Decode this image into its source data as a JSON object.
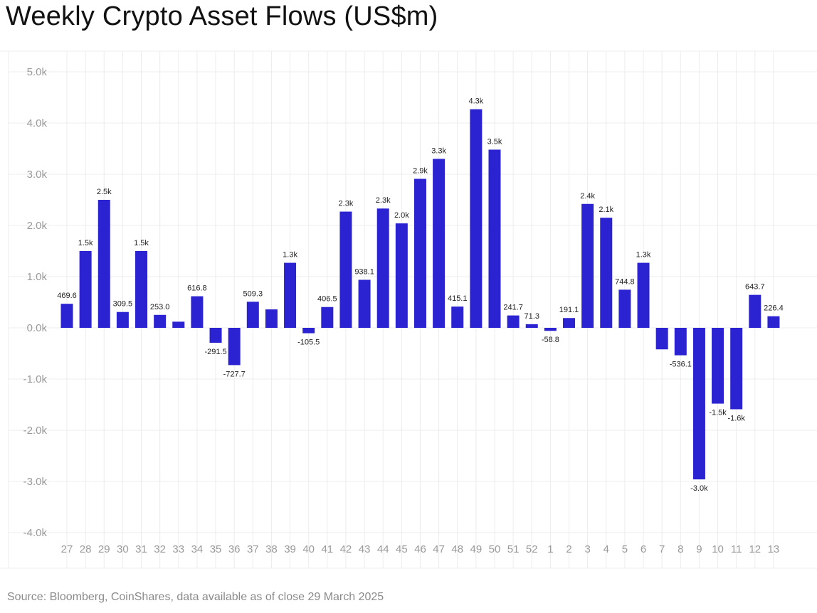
{
  "title": "Weekly Crypto Asset Flows (US$m)",
  "source": "Source: Bloomberg, CoinShares, data available as of close 29 March 2025",
  "colors": {
    "bar": "#2b22d2",
    "grid": "#ececec",
    "tick": "#9a9a9a",
    "label": "#222222"
  },
  "chart_data": {
    "type": "bar",
    "title": "Weekly Crypto Asset Flows (US$m)",
    "ylim": [
      -4000,
      5000
    ],
    "yticks": [
      5000,
      4000,
      3000,
      2000,
      1000,
      0,
      -1000,
      -2000,
      -3000,
      -4000
    ],
    "ytick_labels": [
      "5.0k",
      "4.0k",
      "3.0k",
      "2.0k",
      "1.0k",
      "0.0k",
      "-1.0k",
      "-2.0k",
      "-3.0k",
      "-4.0k"
    ],
    "grid": true,
    "categories": [
      "27",
      "28",
      "29",
      "30",
      "31",
      "32",
      "33",
      "34",
      "35",
      "36",
      "37",
      "38",
      "39",
      "40",
      "41",
      "42",
      "43",
      "44",
      "45",
      "46",
      "47",
      "48",
      "49",
      "50",
      "51",
      "52",
      "1",
      "2",
      "3",
      "4",
      "5",
      "6",
      "7",
      "8",
      "9",
      "10",
      "11",
      "12",
      "13"
    ],
    "values": [
      469.6,
      1500,
      2500,
      309.5,
      1500,
      253.0,
      120,
      616.8,
      -291.5,
      -727.7,
      509.3,
      360,
      1270,
      -105.5,
      406.5,
      2270,
      938.1,
      2330,
      2040,
      2910,
      3300,
      415.1,
      4270,
      3480,
      241.7,
      71.3,
      -58.8,
      191.1,
      2420,
      2150,
      744.8,
      1270,
      -420,
      -536.1,
      -2960,
      -1480,
      -1590,
      643.7,
      226.4
    ],
    "data_labels": [
      "469.6",
      "1.5k",
      "2.5k",
      "309.5",
      "1.5k",
      "253.0",
      "",
      "616.8",
      "-291.5",
      "-727.7",
      "509.3",
      "",
      "1.3k",
      "-105.5",
      "406.5",
      "2.3k",
      "938.1",
      "2.3k",
      "2.0k",
      "2.9k",
      "3.3k",
      "415.1",
      "4.3k",
      "3.5k",
      "241.7",
      "71.3",
      "-58.8",
      "191.1",
      "2.4k",
      "2.1k",
      "744.8",
      "1.3k",
      "",
      "-536.1",
      "-3.0k",
      "-1.5k",
      "-1.6k",
      "643.7",
      "226.4"
    ]
  }
}
